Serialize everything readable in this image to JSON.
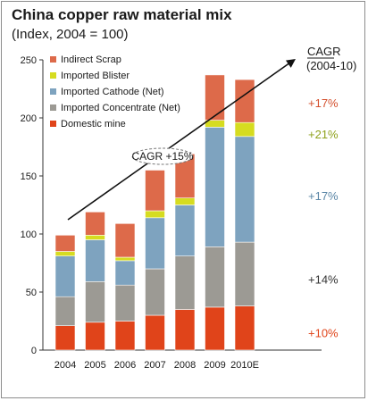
{
  "chart_data": {
    "type": "bar",
    "stacked": true,
    "title": "China copper raw material mix",
    "subtitle": "(Index, 2004 = 100)",
    "categories": [
      "2004",
      "2005",
      "2006",
      "2007",
      "2008",
      "2009",
      "2010E"
    ],
    "ylim": [
      0,
      250
    ],
    "yticks": [
      0,
      50,
      100,
      150,
      200,
      250
    ],
    "legend_position": "top-left",
    "series": [
      {
        "name": "Domestic mine",
        "color": "#e0441a",
        "values": [
          21,
          24,
          25,
          30,
          35,
          37,
          38
        ]
      },
      {
        "name": "Imported Concentrate (Net)",
        "color": "#9c9a94",
        "values": [
          25,
          35,
          31,
          40,
          46,
          52,
          55
        ]
      },
      {
        "name": "Imported Cathode (Net)",
        "color": "#7ea3bf",
        "values": [
          35,
          36,
          21,
          44,
          44,
          103,
          91
        ]
      },
      {
        "name": "Imported Blister",
        "color": "#d6dc20",
        "values": [
          4,
          4,
          3,
          6,
          6,
          6,
          12
        ]
      },
      {
        "name": "Indirect Scrap",
        "color": "#dd6a4a",
        "values": [
          14,
          20,
          29,
          35,
          38,
          39,
          37
        ]
      }
    ],
    "legend_order": [
      4,
      3,
      2,
      1,
      0
    ],
    "trend_label": "CAGR +15%",
    "cagr_title": "CAGR",
    "cagr_period": "(2004-10)",
    "cagr_rates": [
      {
        "series": "Indirect Scrap",
        "label": "+17%",
        "color": "#d4502e",
        "y": 213
      },
      {
        "series": "Imported Blister",
        "label": "+21%",
        "color": "#8ea11c",
        "y": 186
      },
      {
        "series": "Imported Cathode (Net)",
        "label": "+17%",
        "color": "#5a86a6",
        "y": 133
      },
      {
        "series": "Imported Concentrate (Net)",
        "label": "+14%",
        "color": "#333333",
        "y": 61
      },
      {
        "series": "Domestic mine",
        "label": "+10%",
        "color": "#e0441a",
        "y": 15
      }
    ]
  }
}
